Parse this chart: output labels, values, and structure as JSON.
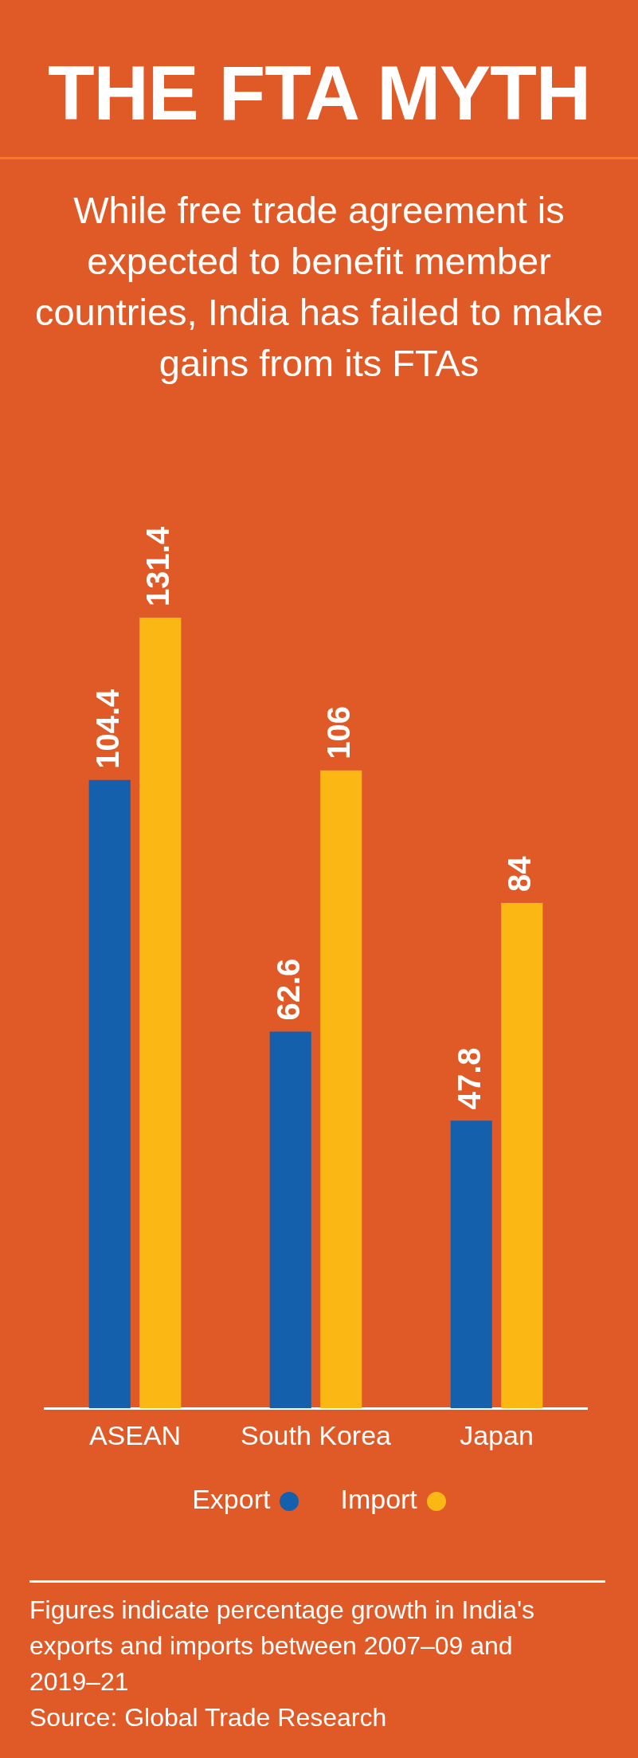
{
  "chart_data": {
    "type": "bar",
    "title": "THE FTA MYTH",
    "subtitle": "While free trade agreement is expected to benefit member countries, India has failed to make gains from its FTAs",
    "categories": [
      "ASEAN",
      "South Korea",
      "Japan"
    ],
    "series": [
      {
        "name": "Export",
        "color": "#1560ac",
        "values": [
          104.4,
          62.6,
          47.8
        ]
      },
      {
        "name": "Import",
        "color": "#fbb714",
        "values": [
          131.4,
          106,
          84
        ]
      }
    ],
    "data_labels": true,
    "grid": false,
    "legend": "bottom",
    "annotations": [
      "Figures indicate percentage growth in India's exports and imports between 2007–09 and 2019–21",
      "Source: Global Trade Research"
    ]
  }
}
